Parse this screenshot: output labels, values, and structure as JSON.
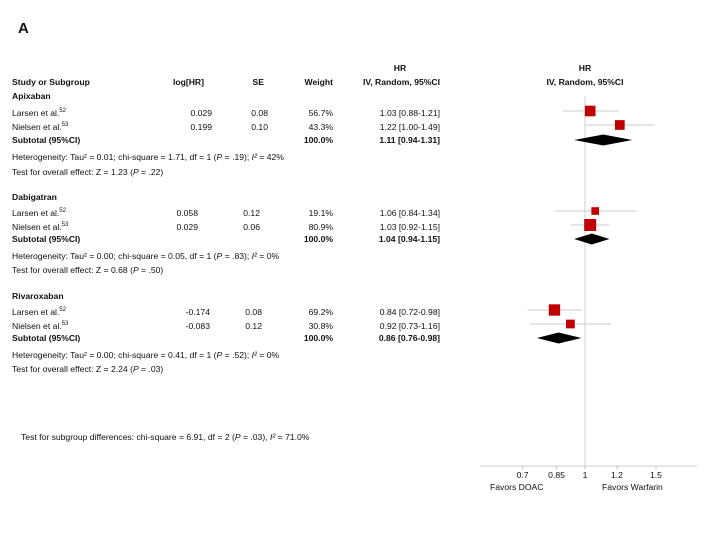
{
  "panel_label": "A",
  "headers": {
    "study": "Study or Subgroup",
    "loghr": "log[HR]",
    "se": "SE",
    "weight": "Weight",
    "hr_top": "HR",
    "hr_bottom": "IV, Random, 95%CI",
    "plot_top": "HR",
    "plot_bottom": "IV, Random, 95%CI"
  },
  "groups": [
    {
      "name": "Apixaban",
      "studies": [
        {
          "study": "Larsen et al.",
          "ref": "52",
          "loghr": "0.029",
          "se": "0.08",
          "weight": "56.7%",
          "hr_text": "1.03 [0.88-1.21]"
        },
        {
          "study": "Nielsen et al.",
          "ref": "53",
          "loghr": "0.199",
          "se": "0.10",
          "weight": "43.3%",
          "hr_text": "1.22 [1.00-1.49]"
        }
      ],
      "subtotal": {
        "label": "Subtotal (95%CI)",
        "weight": "100.0%",
        "hr_text": "1.11 [0.94-1.31]"
      },
      "heterogeneity": {
        "prefix": "Heterogeneity: Tau² = 0.01; chi-square = 1.71, df = 1 (",
        "p": "P",
        "pval": " = .19); ",
        "i2": "I²",
        "i2val": " = 42%"
      },
      "overall": {
        "prefix": "Test for overall effect: Z = 1.23 (",
        "p": "P",
        "pval": " = .22)"
      }
    },
    {
      "name": "Dabigatran",
      "studies": [
        {
          "study": "Larsen et al.",
          "ref": "52",
          "loghr": "0.058",
          "se": "0.12",
          "weight": "19.1%",
          "hr_text": "1.06 [0.84-1.34]"
        },
        {
          "study": "Nielsen et al.",
          "ref": "53",
          "loghr": "0.029",
          "se": "0.06",
          "weight": "80.9%",
          "hr_text": "1.03 [0.92-1.15]"
        }
      ],
      "subtotal": {
        "label": "Subtotal (95%CI)",
        "weight": "100.0%",
        "hr_text": "1.04 [0.94-1.15]"
      },
      "heterogeneity": {
        "prefix": "Heterogeneity: Tau² = 0.00; chi-square = 0.05, df = 1 (",
        "p": "P",
        "pval": " = .83); ",
        "i2": "I²",
        "i2val": " = 0%"
      },
      "overall": {
        "prefix": "Test for overall effect: Z = 0.68 (",
        "p": "P",
        "pval": " = .50)"
      }
    },
    {
      "name": "Rivaroxaban",
      "studies": [
        {
          "study": "Larsen et al.",
          "ref": "52",
          "loghr": "-0.174",
          "se": "0.08",
          "weight": "69.2%",
          "hr_text": "0.84 [0.72-0.98]"
        },
        {
          "study": "Nielsen et al.",
          "ref": "53",
          "loghr": "-0.083",
          "se": "0.12",
          "weight": "30.8%",
          "hr_text": "0.92 [0.73-1.16]"
        }
      ],
      "subtotal": {
        "label": "Subtotal (95%CI)",
        "weight": "100.0%",
        "hr_text": "0.86 [0.76-0.98]"
      },
      "heterogeneity": {
        "prefix": "Heterogeneity: Tau² = 0.00; chi-square = 0.41, df = 1 (",
        "p": "P",
        "pval": " = .52); ",
        "i2": "I²",
        "i2val": " = 0%"
      },
      "overall": {
        "prefix": "Test for overall effect: Z = 2.24 (",
        "p": "P",
        "pval": " = .03)"
      }
    }
  ],
  "subgroup_test": {
    "prefix": "Test for subgroup differences: chi-square = 6.91, df = 2 (",
    "p": "P",
    "pval": " = .03), ",
    "i2": "I²",
    "i2val": " = 71.0%"
  },
  "axis": {
    "ticks": [
      "0.7",
      "0.85",
      "1",
      "1.2",
      "1.5"
    ],
    "favors_left": "Favors DOAC",
    "favors_right": "Favors Warfarin"
  },
  "chart_data": {
    "type": "forest",
    "scale": "log",
    "null_value": 1,
    "xlim": [
      0.6,
      1.9
    ],
    "tick_values": [
      0.7,
      0.85,
      1,
      1.2,
      1.5
    ],
    "colors": {
      "study_marker": "#c00000",
      "summary": "#000000",
      "ci_line": "#cccccc"
    },
    "rows": [
      {
        "group": "Apixaban",
        "kind": "study",
        "hr": 1.03,
        "lo": 0.88,
        "hi": 1.21,
        "weight": 56.7
      },
      {
        "group": "Apixaban",
        "kind": "study",
        "hr": 1.22,
        "lo": 1.0,
        "hi": 1.49,
        "weight": 43.3
      },
      {
        "group": "Apixaban",
        "kind": "subtotal",
        "hr": 1.11,
        "lo": 0.94,
        "hi": 1.31
      },
      {
        "group": "Dabigatran",
        "kind": "study",
        "hr": 1.06,
        "lo": 0.84,
        "hi": 1.34,
        "weight": 19.1
      },
      {
        "group": "Dabigatran",
        "kind": "study",
        "hr": 1.03,
        "lo": 0.92,
        "hi": 1.15,
        "weight": 80.9
      },
      {
        "group": "Dabigatran",
        "kind": "subtotal",
        "hr": 1.04,
        "lo": 0.94,
        "hi": 1.15
      },
      {
        "group": "Rivaroxaban",
        "kind": "study",
        "hr": 0.84,
        "lo": 0.72,
        "hi": 0.98,
        "weight": 69.2
      },
      {
        "group": "Rivaroxaban",
        "kind": "study",
        "hr": 0.92,
        "lo": 0.73,
        "hi": 1.16,
        "weight": 30.8
      },
      {
        "group": "Rivaroxaban",
        "kind": "subtotal",
        "hr": 0.86,
        "lo": 0.76,
        "hi": 0.98
      }
    ]
  }
}
